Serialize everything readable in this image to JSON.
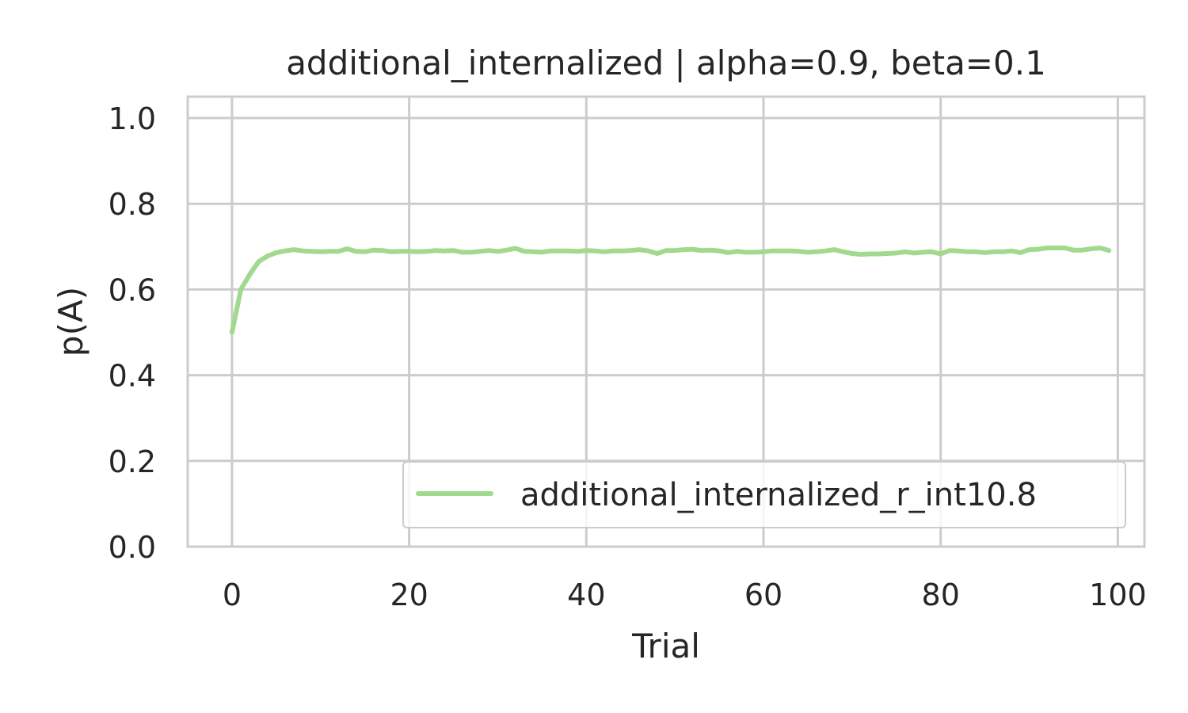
{
  "chart_data": {
    "type": "line",
    "title": "additional_internalized | alpha=0.9, beta=0.1",
    "xlabel": "Trial",
    "ylabel": "p(A)",
    "xlim": [
      -5,
      103
    ],
    "ylim": [
      0,
      1.05
    ],
    "xticks": [
      0,
      20,
      40,
      60,
      80,
      100
    ],
    "yticks": [
      0.0,
      0.2,
      0.4,
      0.6,
      0.8,
      1.0
    ],
    "xtick_labels": [
      "0",
      "20",
      "40",
      "60",
      "80",
      "100"
    ],
    "ytick_labels": [
      "0.0",
      "0.2",
      "0.4",
      "0.6",
      "0.8",
      "1.0"
    ],
    "grid": true,
    "legend_position": "lower-right",
    "series": [
      {
        "name": "additional_internalized_r_int10.8",
        "color": "#a1d98e",
        "x": [
          0,
          1,
          2,
          3,
          4,
          5,
          6,
          7,
          8,
          9,
          10,
          11,
          12,
          13,
          14,
          15,
          16,
          17,
          18,
          19,
          20,
          21,
          22,
          23,
          24,
          25,
          26,
          27,
          28,
          29,
          30,
          31,
          32,
          33,
          34,
          35,
          36,
          37,
          38,
          39,
          40,
          41,
          42,
          43,
          44,
          45,
          46,
          47,
          48,
          49,
          50,
          51,
          52,
          53,
          54,
          55,
          56,
          57,
          58,
          59,
          60,
          61,
          62,
          63,
          64,
          65,
          66,
          67,
          68,
          69,
          70,
          71,
          72,
          73,
          74,
          75,
          76,
          77,
          78,
          79,
          80,
          81,
          82,
          83,
          84,
          85,
          86,
          87,
          88,
          89,
          90,
          91,
          92,
          93,
          94,
          95,
          96,
          97,
          98,
          99
        ],
        "y": [
          0.5,
          0.6,
          0.635,
          0.665,
          0.678,
          0.686,
          0.69,
          0.693,
          0.69,
          0.689,
          0.688,
          0.689,
          0.689,
          0.695,
          0.689,
          0.688,
          0.692,
          0.691,
          0.688,
          0.689,
          0.689,
          0.688,
          0.689,
          0.691,
          0.69,
          0.691,
          0.687,
          0.687,
          0.689,
          0.691,
          0.689,
          0.692,
          0.696,
          0.689,
          0.688,
          0.687,
          0.69,
          0.69,
          0.69,
          0.689,
          0.691,
          0.69,
          0.688,
          0.69,
          0.69,
          0.691,
          0.693,
          0.69,
          0.684,
          0.691,
          0.691,
          0.693,
          0.694,
          0.691,
          0.692,
          0.69,
          0.686,
          0.689,
          0.687,
          0.687,
          0.688,
          0.69,
          0.69,
          0.69,
          0.689,
          0.687,
          0.688,
          0.69,
          0.693,
          0.688,
          0.684,
          0.682,
          0.683,
          0.683,
          0.684,
          0.685,
          0.688,
          0.685,
          0.687,
          0.688,
          0.683,
          0.691,
          0.69,
          0.688,
          0.688,
          0.686,
          0.688,
          0.688,
          0.69,
          0.686,
          0.693,
          0.694,
          0.697,
          0.697,
          0.697,
          0.692,
          0.692,
          0.695,
          0.697,
          0.691
        ]
      }
    ]
  }
}
